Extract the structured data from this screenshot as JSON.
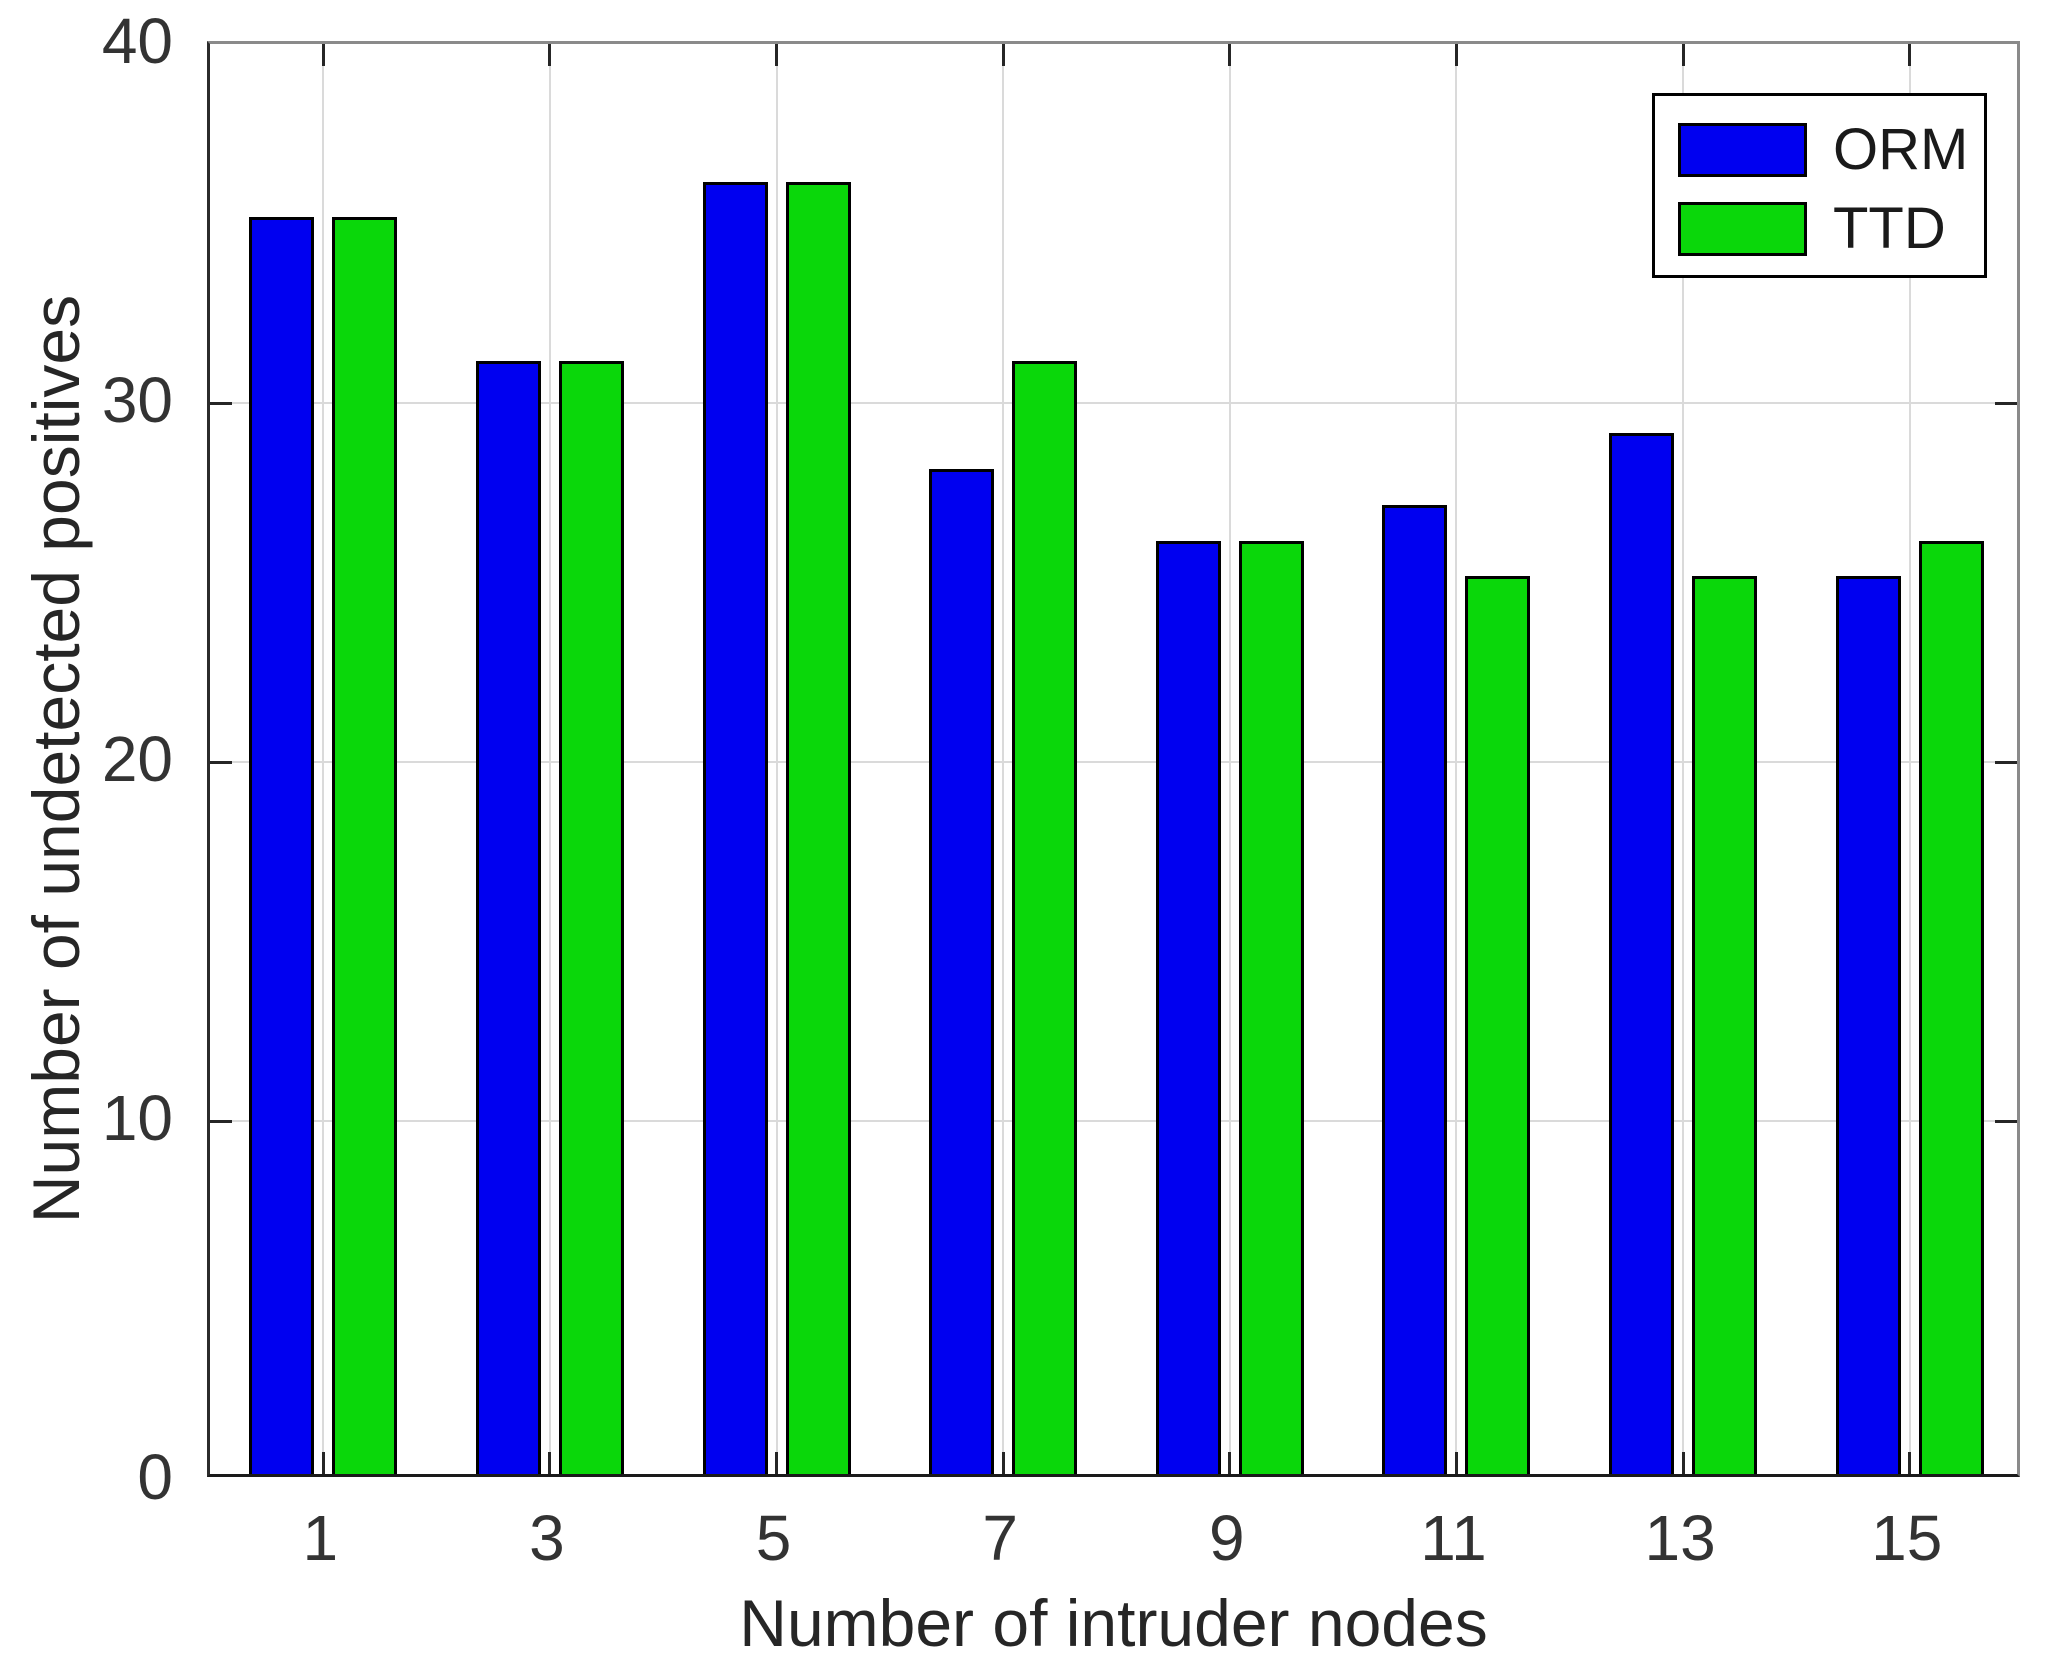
{
  "chart_data": {
    "type": "bar",
    "title": "",
    "xlabel": "Number of intruder nodes",
    "ylabel": "Number of undetected positives",
    "categories": [
      1,
      3,
      5,
      7,
      9,
      11,
      13,
      15
    ],
    "series": [
      {
        "name": "ORM",
        "color": "#0000f0",
        "values": [
          35,
          31,
          36,
          28,
          26,
          27,
          29,
          25
        ]
      },
      {
        "name": "TTD",
        "color": "#0ad70a",
        "values": [
          35,
          31,
          36,
          31,
          26,
          25,
          25,
          26
        ]
      }
    ],
    "xlim": [
      0,
      16
    ],
    "ylim": [
      0,
      40
    ],
    "yticks": [
      0,
      10,
      20,
      30,
      40
    ],
    "grid": true,
    "legend_position": "top-right",
    "bar_edge_color": "#000000",
    "grid_color": "#dadada"
  }
}
